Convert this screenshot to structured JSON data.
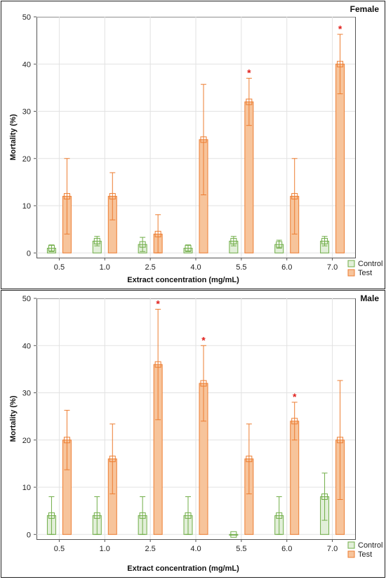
{
  "chart_data": [
    {
      "type": "bar",
      "panel_label": "Female",
      "xlabel": "Extract concentration (mg/mL)",
      "ylabel": "Mortality (%)",
      "categories": [
        "0.5",
        "1.0",
        "2.5",
        "4.0",
        "5.5",
        "6.0",
        "7.0"
      ],
      "ylim": [
        -1,
        50
      ],
      "yticks": [
        0,
        10,
        20,
        30,
        40,
        50
      ],
      "grid": true,
      "legend_position": "bottom-right",
      "series": [
        {
          "name": "Control",
          "color": "#e2efd9",
          "edge_color": "#70ad47",
          "values": [
            1,
            2.5,
            1.8,
            1,
            2.5,
            1.8,
            2.5
          ],
          "error_low": [
            0.3,
            1.5,
            0.3,
            0.3,
            1.5,
            1.0,
            1.5
          ],
          "error_high": [
            1.7,
            3.5,
            3.3,
            1.7,
            3.5,
            2.7,
            3.5
          ]
        },
        {
          "name": "Test",
          "color": "#f7c49b",
          "edge_color": "#ed7d31",
          "values": [
            12,
            12,
            4,
            24,
            32,
            12,
            40
          ],
          "error_low": [
            4,
            7,
            0,
            12.3,
            27,
            4,
            33.7
          ],
          "error_high": [
            20,
            17,
            8.1,
            35.7,
            37,
            20,
            46.3
          ]
        }
      ],
      "significance_marker": "*",
      "significant": [
        {
          "category": "5.5",
          "series": "Test"
        },
        {
          "category": "7.0",
          "series": "Test"
        }
      ]
    },
    {
      "type": "bar",
      "panel_label": "Male",
      "xlabel": "Extract concentration (mg/mL)",
      "ylabel": "Mortality (%)",
      "categories": [
        "0.5",
        "1.0",
        "2.5",
        "4.0",
        "5.5",
        "6.0",
        "7.0"
      ],
      "ylim": [
        -1,
        50
      ],
      "yticks": [
        0,
        10,
        20,
        30,
        40,
        50
      ],
      "grid": true,
      "legend_position": "bottom-right",
      "series": [
        {
          "name": "Control",
          "color": "#e2efd9",
          "edge_color": "#70ad47",
          "values": [
            4,
            4,
            4,
            4,
            0,
            4,
            8
          ],
          "error_low": [
            0,
            0,
            0,
            0,
            0,
            0,
            3
          ],
          "error_high": [
            8,
            8,
            8,
            8,
            0,
            8,
            13
          ]
        },
        {
          "name": "Test",
          "color": "#f7c49b",
          "edge_color": "#ed7d31",
          "values": [
            20,
            16,
            36,
            32,
            16,
            24,
            20
          ],
          "error_low": [
            13.7,
            8.6,
            24.3,
            24,
            8.6,
            20,
            7.4
          ],
          "error_high": [
            26.3,
            23.4,
            47.7,
            40,
            23.4,
            28,
            32.6
          ]
        }
      ],
      "significance_marker": "*",
      "significant": [
        {
          "category": "2.5",
          "series": "Test"
        },
        {
          "category": "4.0",
          "series": "Test"
        },
        {
          "category": "6.0",
          "series": "Test"
        }
      ]
    }
  ]
}
